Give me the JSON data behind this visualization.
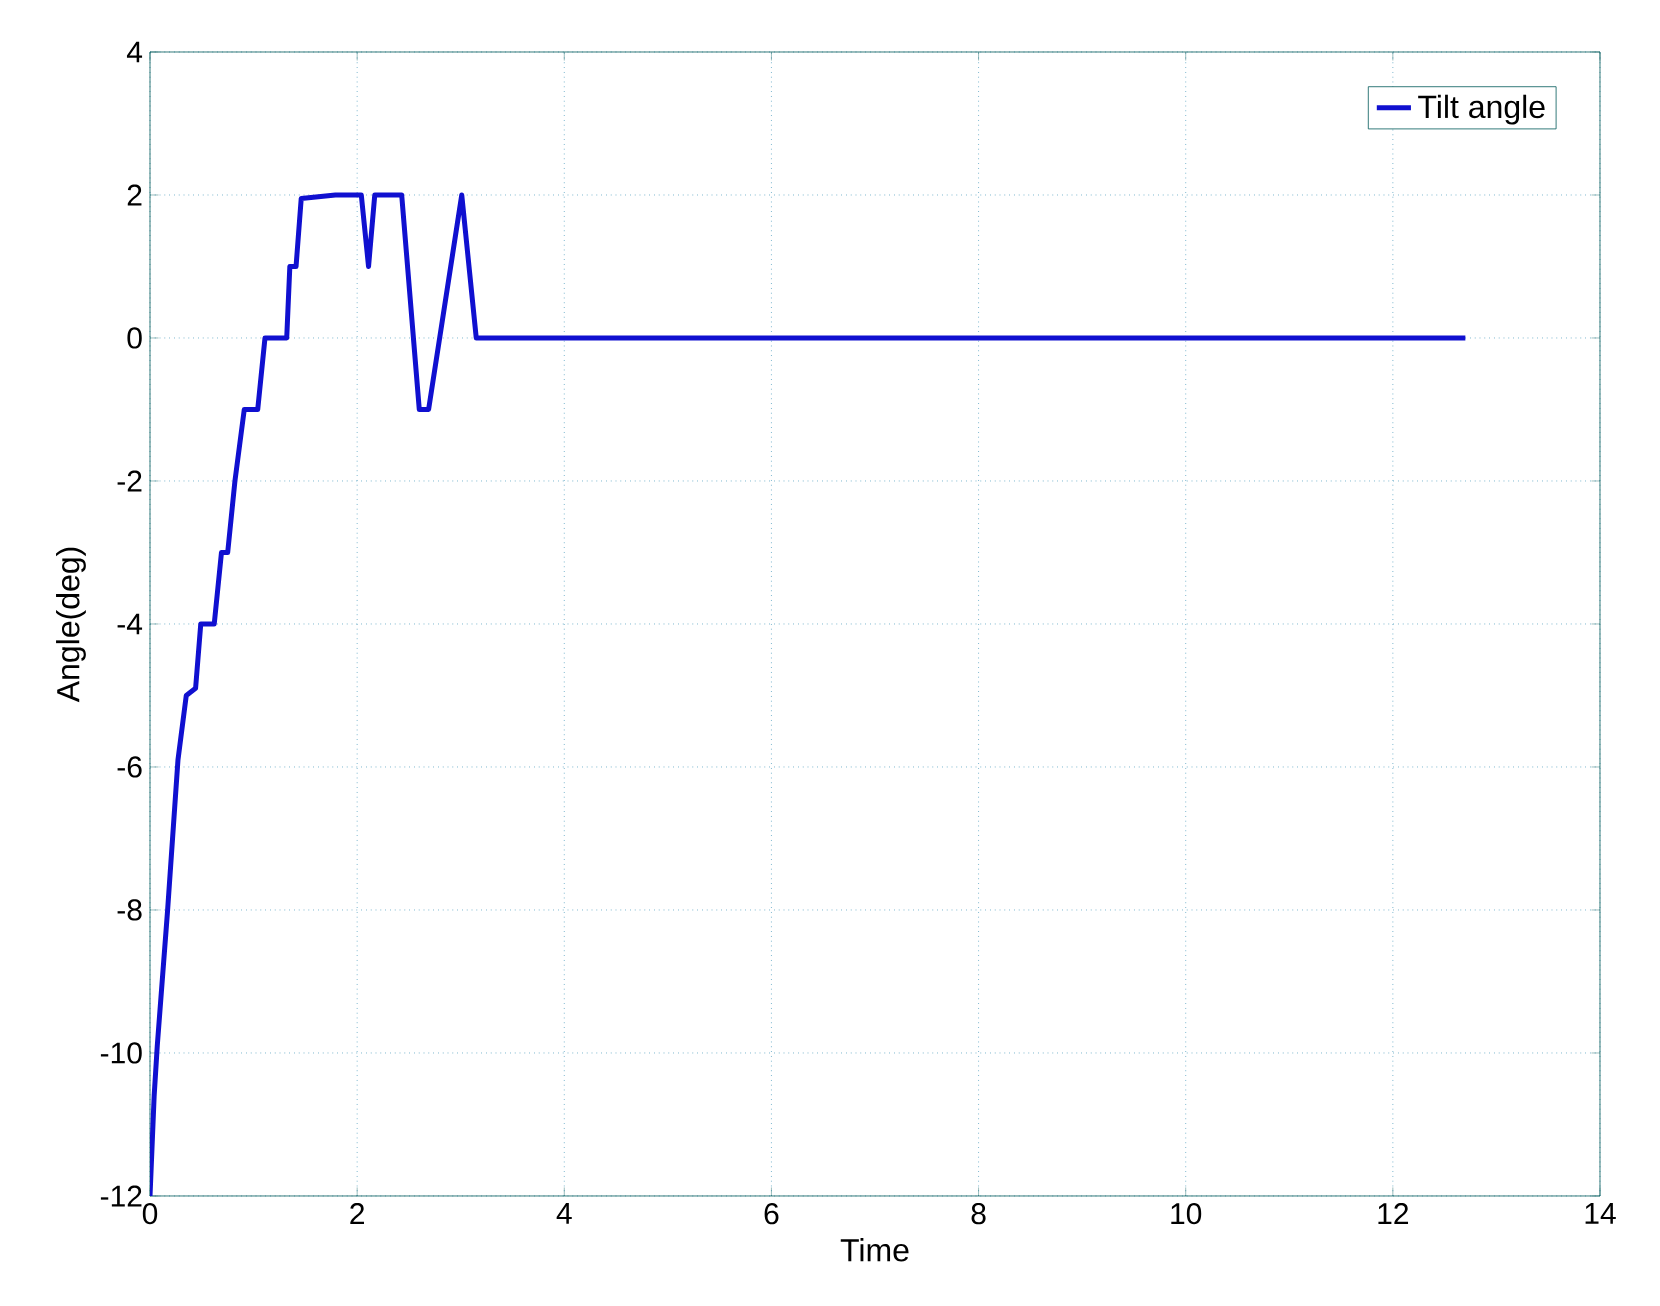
{
  "chart_data": {
    "type": "line",
    "xlabel": "Time",
    "ylabel": "Angle(deg)",
    "series": [
      {
        "name": "Tilt angle",
        "color": "#1010d0",
        "x": [
          0,
          0.04,
          0.07,
          0.17,
          0.27,
          0.35,
          0.44,
          0.49,
          0.62,
          0.69,
          0.75,
          0.82,
          0.91,
          1.04,
          1.11,
          1.32,
          1.35,
          1.41,
          1.46,
          1.79,
          2.04,
          2.11,
          2.17,
          2.43,
          2.6,
          2.69,
          3.01,
          3.15,
          12.7
        ],
        "values": [
          -12,
          -10.6,
          -9.9,
          -8,
          -5.9,
          -5,
          -4.9,
          -4,
          -4,
          -3,
          -3,
          -2,
          -1,
          -1,
          0,
          0,
          1,
          1,
          1.95,
          2,
          2,
          1,
          2,
          2,
          -1,
          -1,
          2,
          0,
          0
        ]
      }
    ],
    "xlim": [
      0,
      14
    ],
    "ylim": [
      -12,
      4
    ],
    "xticks": [
      0,
      2,
      4,
      6,
      8,
      10,
      12,
      14
    ],
    "yticks": [
      -12,
      -10,
      -8,
      -6,
      -4,
      -2,
      0,
      2,
      4
    ],
    "grid": true,
    "legend": "top right",
    "marker": "none",
    "line_style": "solid"
  }
}
